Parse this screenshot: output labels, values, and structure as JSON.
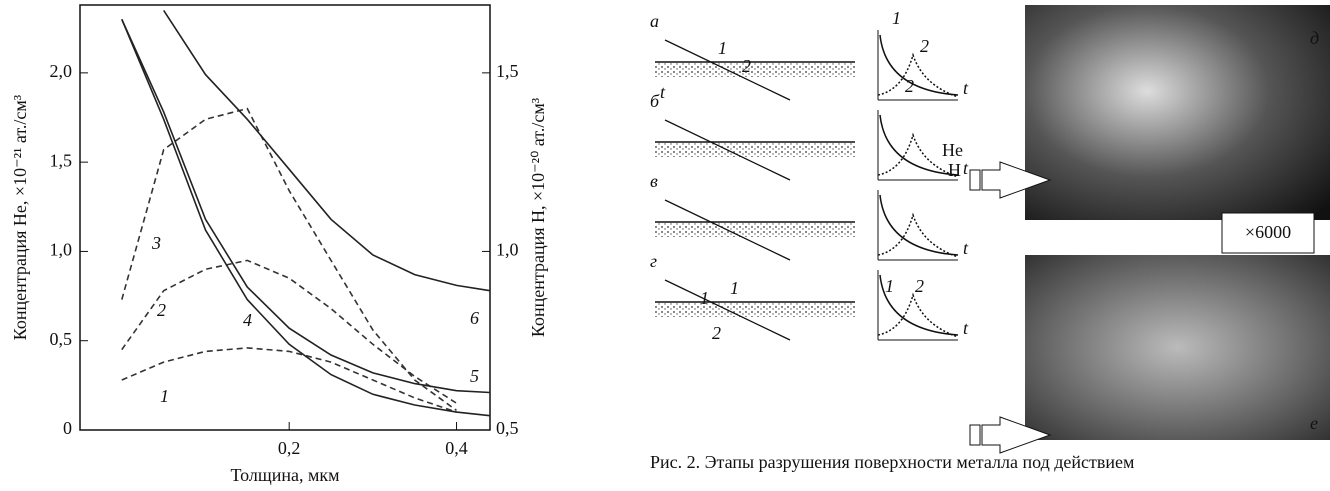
{
  "chart_data": {
    "type": "line",
    "x_label": "Толщина, мкм",
    "y_label": "Концентрация He, ×10⁻²¹ ат./см³",
    "y2_label": "Концентрация H, ×10⁻²⁰ ат./см³",
    "x": [
      0,
      0.05,
      0.1,
      0.15,
      0.2,
      0.25,
      0.3,
      0.35,
      0.4,
      0.44
    ],
    "xlim": [
      -0.05,
      0.44
    ],
    "xticks": [
      {
        "value": 0.2,
        "label": "0,2"
      },
      {
        "value": 0.4,
        "label": "0,4"
      }
    ],
    "ylim": [
      0,
      2.38
    ],
    "yticks": [
      0,
      {
        "value": 0.5,
        "label": "0,5"
      },
      {
        "value": 1.0,
        "label": "1,0"
      },
      {
        "value": 1.5,
        "label": "1,5"
      },
      {
        "value": 2.0,
        "label": "2,0"
      }
    ],
    "y2lim": [
      0.5,
      1.69
    ],
    "y2ticks": [
      {
        "value": 0.5,
        "label": "0,5"
      },
      {
        "value": 1.0,
        "label": "1,0"
      },
      {
        "value": 1.5,
        "label": "1,5"
      }
    ],
    "series": [
      {
        "name": "1",
        "color": "#333",
        "dash": true,
        "values": [
          0.28,
          0.38,
          0.44,
          0.46,
          0.44,
          0.38,
          0.28,
          0.18,
          0.1,
          null
        ]
      },
      {
        "name": "2",
        "color": "#333",
        "dash": true,
        "values": [
          0.45,
          0.78,
          0.9,
          0.95,
          0.85,
          0.68,
          0.48,
          0.3,
          0.15,
          null
        ]
      },
      {
        "name": "3",
        "color": "#333",
        "dash": true,
        "values": [
          0.73,
          1.57,
          1.74,
          1.8,
          1.34,
          0.95,
          0.56,
          0.28,
          0.11,
          null
        ]
      },
      {
        "name": "4",
        "color": "#222",
        "dash": false,
        "values": [
          2.3,
          1.74,
          1.12,
          0.73,
          0.48,
          0.31,
          0.2,
          0.14,
          0.1,
          0.08
        ]
      },
      {
        "name": "5",
        "color": "#222",
        "dash": false,
        "values": [
          2.3,
          1.78,
          1.18,
          0.8,
          0.57,
          0.42,
          0.32,
          0.26,
          0.22,
          0.21
        ]
      },
      {
        "name": "6",
        "color": "#222",
        "dash": false,
        "values": [
          null,
          2.35,
          1.99,
          1.74,
          1.46,
          1.18,
          0.98,
          0.87,
          0.81,
          0.78
        ]
      }
    ]
  },
  "figure": {
    "panel_labels": [
      "а",
      "б",
      "в",
      "г",
      "д",
      "е"
    ],
    "point_labels": [
      "1",
      "2"
    ],
    "time_label": "t",
    "species": [
      "He",
      "H"
    ],
    "magnification": "×6000",
    "caption": "Рис. 2. Этапы разрушения поверхности металла под действием"
  }
}
